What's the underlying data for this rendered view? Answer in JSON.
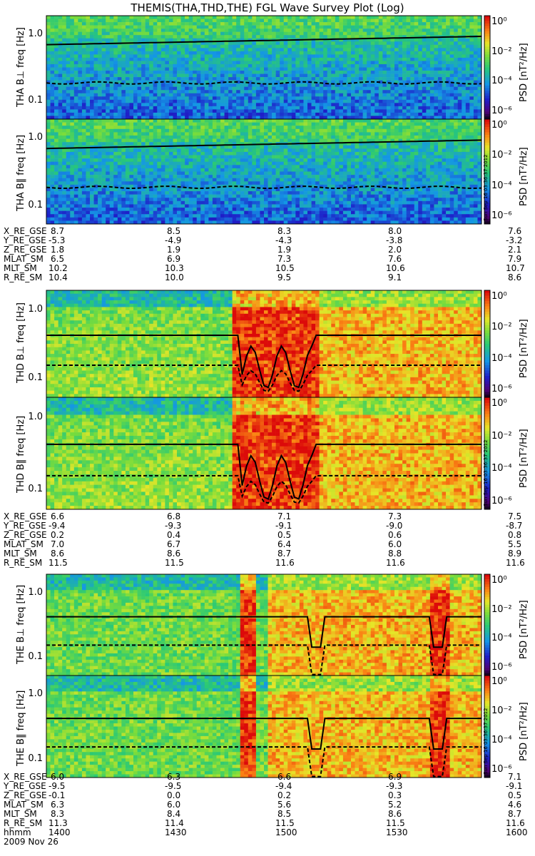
{
  "title": "THEMIS(THA,THD,THE) FGL Wave Survey Plot (Log)",
  "colorbar": {
    "label": "PSD [nT²/Hz]",
    "ticks": [
      "10⁰",
      "10⁻²",
      "10⁻⁴",
      "10⁻⁶"
    ]
  },
  "stamp": "Sun Sep 16 03:36:37 2012",
  "y_ticks": [
    "1.0",
    "0.1"
  ],
  "chart_data": {
    "type": "heatmap",
    "x_ticks": [
      "1400",
      "1430",
      "1500",
      "1530",
      "1600"
    ],
    "date": "2009 Nov 26",
    "ylabel_unit": "freq [Hz]",
    "yscale": "log",
    "panels": [
      {
        "name": "THA B⊥",
        "probe": "THA",
        "activity": "low"
      },
      {
        "name": "THA B‖",
        "probe": "THA",
        "activity": "low"
      },
      {
        "name": "THD B⊥",
        "probe": "THD",
        "activity": "high"
      },
      {
        "name": "THD B‖",
        "probe": "THD",
        "activity": "high"
      },
      {
        "name": "THE B⊥",
        "probe": "THE",
        "activity": "high"
      },
      {
        "name": "THE B‖",
        "probe": "THE",
        "activity": "high"
      }
    ]
  },
  "ephemeris": [
    {
      "probe": "THA",
      "rows": [
        {
          "label": "X_RE_GSE",
          "values": [
            "8.7",
            "8.5",
            "8.3",
            "8.0",
            "7.6"
          ]
        },
        {
          "label": "Y_RE_GSE",
          "values": [
            "-5.3",
            "-4.9",
            "-4.3",
            "-3.8",
            "-3.2"
          ]
        },
        {
          "label": "Z_RE_GSE",
          "values": [
            "1.8",
            "1.9",
            "1.9",
            "2.0",
            "2.1"
          ]
        },
        {
          "label": "MLAT_SM",
          "values": [
            "6.5",
            "6.9",
            "7.3",
            "7.6",
            "7.9"
          ]
        },
        {
          "label": "MLT_SM",
          "values": [
            "10.2",
            "10.3",
            "10.5",
            "10.6",
            "10.7"
          ]
        },
        {
          "label": "R_RE_SM",
          "values": [
            "10.4",
            "10.0",
            "9.5",
            "9.1",
            "8.6"
          ]
        }
      ]
    },
    {
      "probe": "THD",
      "rows": [
        {
          "label": "X_RE_GSE",
          "values": [
            "6.6",
            "6.8",
            "7.1",
            "7.3",
            "7.5"
          ]
        },
        {
          "label": "Y_RE_GSE",
          "values": [
            "-9.4",
            "-9.3",
            "-9.1",
            "-9.0",
            "-8.7"
          ]
        },
        {
          "label": "Z_RE_GSE",
          "values": [
            "0.2",
            "0.4",
            "0.5",
            "0.6",
            "0.8"
          ]
        },
        {
          "label": "MLAT_SM",
          "values": [
            "7.0",
            "6.7",
            "6.4",
            "6.0",
            "5.5"
          ]
        },
        {
          "label": "MLT_SM",
          "values": [
            "8.6",
            "8.6",
            "8.7",
            "8.8",
            "8.9"
          ]
        },
        {
          "label": "R_RE_SM",
          "values": [
            "11.5",
            "11.5",
            "11.6",
            "11.6",
            "11.6"
          ]
        }
      ]
    },
    {
      "probe": "THE",
      "rows": [
        {
          "label": "X_RE_GSE",
          "values": [
            "6.0",
            "6.3",
            "6.6",
            "6.9",
            "7.1"
          ]
        },
        {
          "label": "Y_RE_GSE",
          "values": [
            "-9.5",
            "-9.5",
            "-9.4",
            "-9.3",
            "-9.1"
          ]
        },
        {
          "label": "Z_RE_GSE",
          "values": [
            "-0.1",
            "0.0",
            "0.2",
            "0.3",
            "0.5"
          ]
        },
        {
          "label": "MLAT_SM",
          "values": [
            "6.3",
            "6.0",
            "5.6",
            "5.2",
            "4.6"
          ]
        },
        {
          "label": "MLT_SM",
          "values": [
            "8.3",
            "8.4",
            "8.5",
            "8.6",
            "8.7"
          ]
        },
        {
          "label": "R_RE_SM",
          "values": [
            "11.3",
            "11.4",
            "11.5",
            "11.5",
            "11.6"
          ]
        },
        {
          "label": "hhmm",
          "values": [
            "1400",
            "1430",
            "1500",
            "1530",
            "1600"
          ]
        }
      ]
    }
  ]
}
